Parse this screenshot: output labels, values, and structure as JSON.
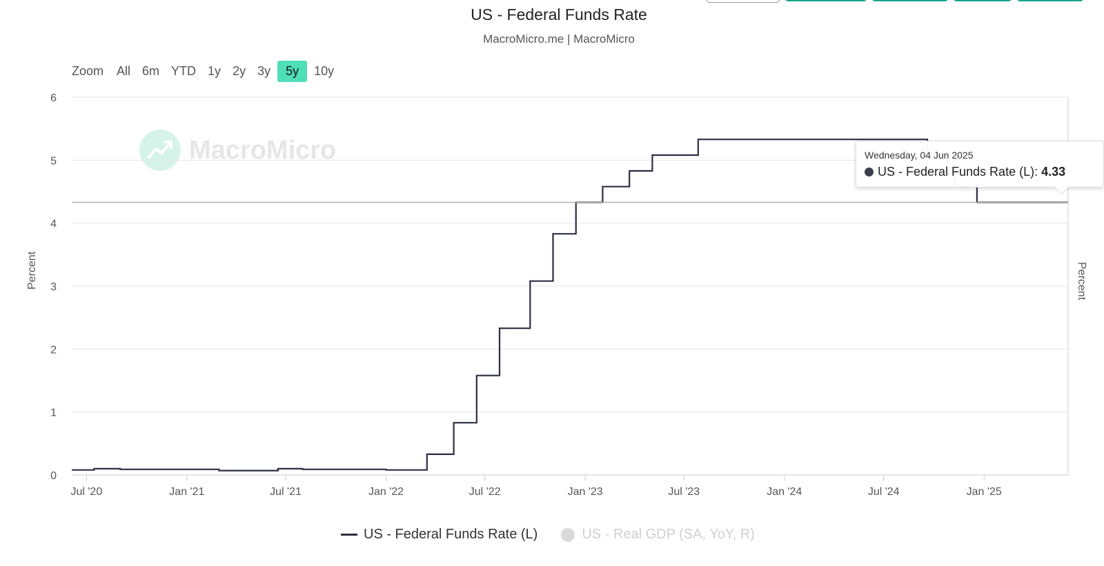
{
  "title": "US - Federal Funds Rate",
  "subtitle": "MacroMicro.me | MacroMicro",
  "zoom": {
    "label": "Zoom",
    "buttons": [
      "All",
      "6m",
      "YTD",
      "1y",
      "2y",
      "3y",
      "5y",
      "10y"
    ],
    "active": "5y"
  },
  "watermark": "MacroMicro",
  "tooltip": {
    "date": "Wednesday, 04 Jun 2025",
    "series": "US - Federal Funds Rate (L)",
    "value": "4.33"
  },
  "legend": [
    {
      "label": "US - Federal Funds Rate (L)",
      "visible": true
    },
    {
      "label": "US - Real GDP (SA, YoY, R)",
      "visible": false
    }
  ],
  "colors": {
    "line": "#2b2e42",
    "accent": "#4fdfb8",
    "brand": "#17a589"
  },
  "chart_data": {
    "type": "line",
    "title": "US - Federal Funds Rate",
    "subtitle": "MacroMicro.me | MacroMicro",
    "ylabel": "Percent",
    "ylabel_right": "Percent",
    "ylim": [
      0,
      6
    ],
    "yticks": [
      0,
      1,
      2,
      3,
      4,
      5,
      6
    ],
    "xlim": [
      "2020-06-04",
      "2025-06-04"
    ],
    "xticks": [
      {
        "date": "2020-07-01",
        "label": "Jul '20"
      },
      {
        "date": "2021-01-01",
        "label": "Jan '21"
      },
      {
        "date": "2021-07-01",
        "label": "Jul '21"
      },
      {
        "date": "2022-01-01",
        "label": "Jan '22"
      },
      {
        "date": "2022-07-01",
        "label": "Jul '22"
      },
      {
        "date": "2023-01-01",
        "label": "Jan '23"
      },
      {
        "date": "2023-07-01",
        "label": "Jul '23"
      },
      {
        "date": "2024-01-01",
        "label": "Jan '24"
      },
      {
        "date": "2024-07-01",
        "label": "Jul '24"
      },
      {
        "date": "2025-01-01",
        "label": "Jan '25"
      }
    ],
    "grid": true,
    "legend_position": "bottom",
    "series": [
      {
        "name": "US - Federal Funds Rate (L)",
        "step": true,
        "points": [
          [
            "2020-06-04",
            0.08
          ],
          [
            "2020-07-15",
            0.1
          ],
          [
            "2020-09-01",
            0.09
          ],
          [
            "2021-01-01",
            0.09
          ],
          [
            "2021-03-01",
            0.07
          ],
          [
            "2021-06-17",
            0.1
          ],
          [
            "2021-08-01",
            0.09
          ],
          [
            "2022-01-01",
            0.08
          ],
          [
            "2022-03-17",
            0.33
          ],
          [
            "2022-05-05",
            0.83
          ],
          [
            "2022-06-16",
            1.58
          ],
          [
            "2022-07-28",
            2.33
          ],
          [
            "2022-09-22",
            3.08
          ],
          [
            "2022-11-03",
            3.83
          ],
          [
            "2022-12-15",
            4.33
          ],
          [
            "2023-02-02",
            4.58
          ],
          [
            "2023-03-23",
            4.83
          ],
          [
            "2023-05-04",
            5.08
          ],
          [
            "2023-07-27",
            5.33
          ],
          [
            "2024-09-19",
            4.83
          ],
          [
            "2024-11-08",
            4.58
          ],
          [
            "2024-12-19",
            4.33
          ],
          [
            "2025-06-04",
            4.33
          ]
        ]
      }
    ],
    "crosshair_value": 4.33
  }
}
